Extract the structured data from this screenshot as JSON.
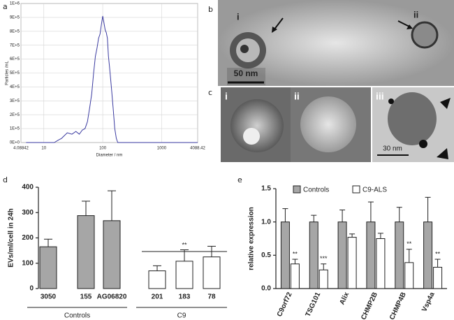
{
  "panel_labels": [
    "a",
    "b",
    "c",
    "d",
    "e"
  ],
  "chart_data": [
    {
      "type": "line",
      "x_label": "Diameter / nm",
      "y_label": "Particles /mL",
      "color": "#3a3aa0",
      "xscale": "log",
      "grid": true,
      "xlim": [
        4.08842,
        4088.42
      ],
      "xticks": [
        4.08842,
        10,
        100,
        1000,
        4088.42
      ],
      "ylim": [
        0,
        1000000
      ],
      "yticks": [
        {
          "value": 0,
          "label": "0E+0"
        },
        {
          "value": 100000,
          "label": "1E+5"
        },
        {
          "value": 200000,
          "label": "2E+5"
        },
        {
          "value": 300000,
          "label": "3E+5"
        },
        {
          "value": 400000,
          "label": "4E+5"
        },
        {
          "value": 500000,
          "label": "5E+5"
        },
        {
          "value": 600000,
          "label": "6E+5"
        },
        {
          "value": 700000,
          "label": "7E+5"
        },
        {
          "value": 800000,
          "label": "8E+5"
        },
        {
          "value": 900000,
          "label": "9E+5"
        },
        {
          "value": 1000000,
          "label": "1E+6"
        }
      ],
      "x": [
        5,
        15,
        18,
        20,
        25,
        30,
        35,
        40,
        45,
        50,
        55,
        60,
        65,
        70,
        75,
        80,
        85,
        90,
        95,
        100,
        105,
        110,
        115,
        120,
        125,
        130,
        140,
        150,
        160,
        170,
        180,
        200,
        4088.42
      ],
      "values": [
        0,
        0,
        20000,
        30000,
        70000,
        60000,
        80000,
        60000,
        90000,
        100000,
        150000,
        250000,
        350000,
        500000,
        620000,
        680000,
        750000,
        780000,
        850000,
        910000,
        860000,
        810000,
        790000,
        750000,
        620000,
        550000,
        400000,
        250000,
        100000,
        30000,
        0,
        0,
        0
      ]
    },
    {
      "type": "bar",
      "y_label": "EVs/ml/cell in 24h",
      "categories": [
        "3050",
        "155",
        "AG06820",
        "201",
        "183",
        "78"
      ],
      "values": [
        165,
        288,
        268,
        70,
        108,
        125
      ],
      "errors": [
        30,
        57,
        118,
        20,
        45,
        42
      ],
      "colors": [
        "#a6a6a6",
        "#a6a6a6",
        "#a6a6a6",
        "#ffffff",
        "#ffffff",
        "#ffffff"
      ],
      "ylim": [
        0,
        400
      ],
      "yticks": [
        0,
        100,
        200,
        300,
        400
      ],
      "groups": [
        {
          "label": "Controls",
          "categories": [
            "3050",
            "155",
            "AG06820"
          ]
        },
        {
          "label": "C9",
          "categories": [
            "201",
            "183",
            "78"
          ],
          "significance": "**"
        }
      ]
    },
    {
      "type": "grouped_bar",
      "y_label": "relative expression",
      "categories": [
        "C9orf72",
        "TSG101",
        "Alix",
        "CHMP2B",
        "CHMP4B",
        "Vsp4a"
      ],
      "series": [
        {
          "name": "Controls",
          "color": "#a6a6a6",
          "values": [
            1.0,
            1.0,
            1.0,
            1.0,
            1.0,
            1.0
          ],
          "errors": [
            0.2,
            0.1,
            0.18,
            0.3,
            0.22,
            0.37
          ]
        },
        {
          "name": "C9-ALS",
          "color": "#ffffff",
          "values": [
            0.37,
            0.28,
            0.77,
            0.75,
            0.39,
            0.32
          ],
          "errors": [
            0.07,
            0.09,
            0.05,
            0.08,
            0.2,
            0.12
          ],
          "significance": [
            "**",
            "***",
            null,
            null,
            "**",
            "**"
          ]
        }
      ],
      "ylim": [
        0,
        1.5
      ],
      "yticks": [
        {
          "value": 0,
          "label": "0.0"
        },
        {
          "value": 0.5,
          "label": "0.5"
        },
        {
          "value": 1,
          "label": "1.0"
        },
        {
          "value": 1.5,
          "label": "1.5"
        }
      ],
      "legend": "top"
    }
  ],
  "images": {
    "b": {
      "labels": [
        "i",
        "ii"
      ],
      "scale_bar": "50 nm"
    },
    "c": {
      "labels": [
        "i",
        "ii",
        "iii"
      ],
      "scale_bar": "30 nm"
    }
  }
}
